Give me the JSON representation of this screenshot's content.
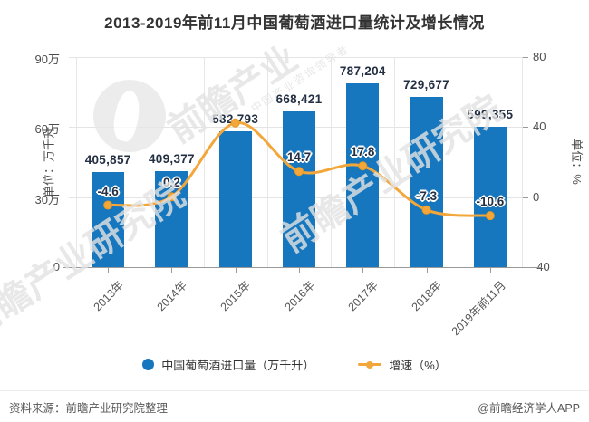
{
  "title": "2013-2019年前11月中国葡萄酒进口量统计及增长情况",
  "colors": {
    "bar": "#1677be",
    "line": "#f3a73b",
    "line_dot_edge": "#e8991f",
    "data_label": "#232f42",
    "grid": "#e4e4e4",
    "axis": "#999999",
    "axis_text": "#4d4d4d",
    "title_text": "#333333",
    "footer_text": "#595959"
  },
  "chart_data": {
    "type": "bar+line combo",
    "categories": [
      "2013年",
      "2014年",
      "2015年",
      "2016年",
      "2017年",
      "2018年",
      "2019年前11月"
    ],
    "series": [
      {
        "name": "中国葡萄酒进口量（万千升）",
        "type": "bar",
        "axis": "left",
        "values": [
          405857,
          409377,
          582793,
          668421,
          787204,
          729677,
          599355
        ],
        "labels": [
          "405,857",
          "409,377",
          "582,793",
          "668,421",
          "787,204",
          "729,677",
          "599,355"
        ]
      },
      {
        "name": "增速（%）",
        "type": "line",
        "axis": "right",
        "values": [
          -4.6,
          0.2,
          42.4,
          14.7,
          17.8,
          -7.3,
          -10.6
        ],
        "labels": [
          "-4.6",
          "0.2",
          "",
          "14.7",
          "17.8",
          "-7.3",
          "-10.6"
        ]
      }
    ],
    "left_axis": {
      "name": "单位：万千升",
      "ylim": [
        0,
        900000
      ],
      "tick_values": [
        0,
        300000,
        600000,
        900000
      ],
      "tick_labels": [
        "0",
        "30万",
        "60万",
        "90万"
      ]
    },
    "right_axis": {
      "name": "单位：%",
      "ylim": [
        -40,
        80
      ],
      "tick_values": [
        -40,
        0,
        40,
        80
      ],
      "tick_labels": [
        "-40",
        "0",
        "40",
        "80"
      ]
    },
    "grid": "horizontal and vertical light gray gridlines",
    "legend_position": "bottom center",
    "x_label_rotation": -45
  },
  "legend": {
    "items": [
      {
        "label": "中国葡萄酒进口量（万千升）",
        "marker": "circle-marker",
        "color": "#1677be"
      },
      {
        "label": "增速（%）",
        "marker": "line-dot-marker",
        "color": "#f3a73b"
      }
    ]
  },
  "footer": {
    "source": "资料来源：前瞻产业研究院整理",
    "credit": "@前瞻经济学人APP"
  },
  "watermark": {
    "brand_short": "前瞻产业",
    "brand_full": "前瞻产业研究院",
    "slogan": "中国产业咨询领导者"
  }
}
